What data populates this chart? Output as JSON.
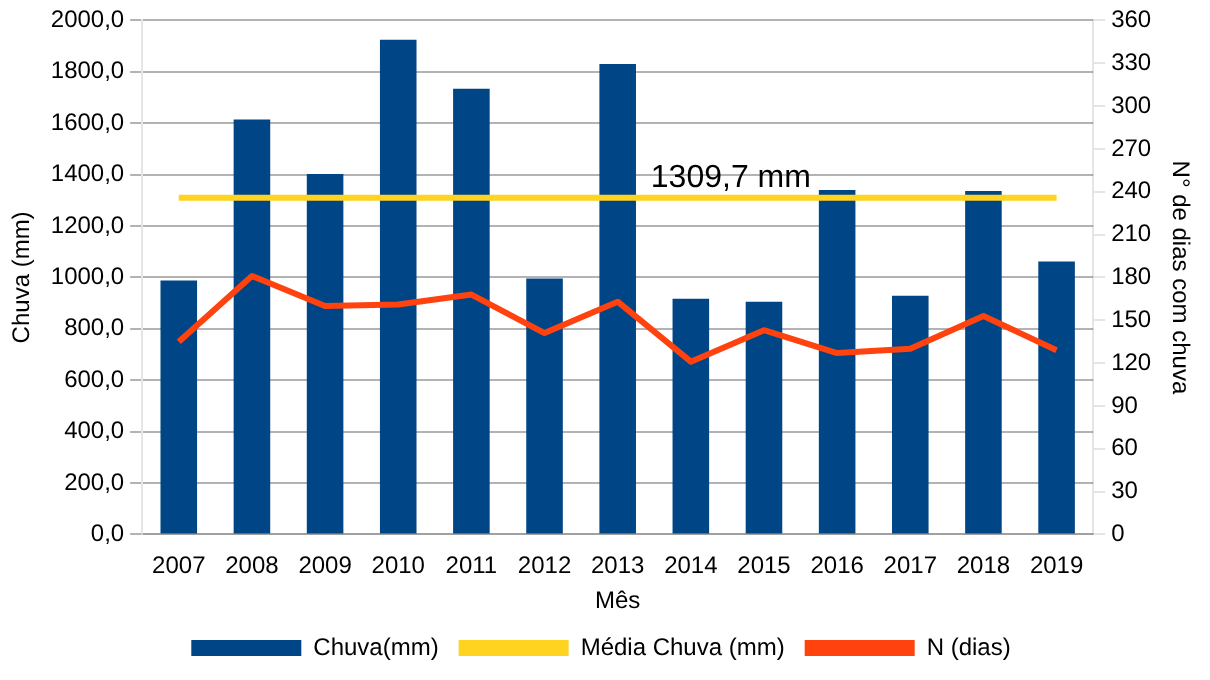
{
  "chart_data": {
    "type": "bar",
    "xlabel": "Mês",
    "ylabel": "Chuva (mm)",
    "y2label": "N° de dias com chuva",
    "categories": [
      "2007",
      "2008",
      "2009",
      "2010",
      "2011",
      "2012",
      "2013",
      "2014",
      "2015",
      "2016",
      "2017",
      "2018",
      "2019"
    ],
    "series": [
      {
        "name": "Chuva(mm)",
        "color": "#004586",
        "values": [
          988,
          1614,
          1402,
          1925,
          1734,
          996,
          1830,
          917,
          905,
          1340,
          929,
          1336,
          1062
        ]
      },
      {
        "name": "Média Chuva (mm)",
        "type": "line",
        "color": "#ffd320",
        "values": [
          1309.7,
          1309.7,
          1309.7,
          1309.7,
          1309.7,
          1309.7,
          1309.7,
          1309.7,
          1309.7,
          1309.7,
          1309.7,
          1309.7,
          1309.7
        ]
      },
      {
        "name": "N (dias)",
        "type": "line",
        "axis": "y2",
        "color": "#ff420e",
        "values": [
          135,
          181,
          160,
          161,
          168,
          141,
          163,
          121,
          143,
          127,
          130,
          153,
          129
        ]
      }
    ],
    "annotations": [
      {
        "text": "1309,7 mm",
        "x": "2014",
        "y": 1309.7
      }
    ],
    "ylim": [
      0,
      2000
    ],
    "yticks": [
      {
        "value": 0,
        "label": "0,0"
      },
      {
        "value": 200,
        "label": "200,0"
      },
      {
        "value": 400,
        "label": "400,0"
      },
      {
        "value": 600,
        "label": "600,0"
      },
      {
        "value": 800,
        "label": "800,0"
      },
      {
        "value": 1000,
        "label": "1000,0"
      },
      {
        "value": 1200,
        "label": "1200,0"
      },
      {
        "value": 1400,
        "label": "1400,0"
      },
      {
        "value": 1600,
        "label": "1600,0"
      },
      {
        "value": 1800,
        "label": "1800,0"
      },
      {
        "value": 2000,
        "label": "2000,0"
      }
    ],
    "y2lim": [
      0,
      360
    ],
    "y2ticks": [
      0,
      30,
      60,
      90,
      120,
      150,
      180,
      210,
      240,
      270,
      300,
      330,
      360
    ],
    "grid": "y",
    "legend": "bottom",
    "marker": "none"
  }
}
